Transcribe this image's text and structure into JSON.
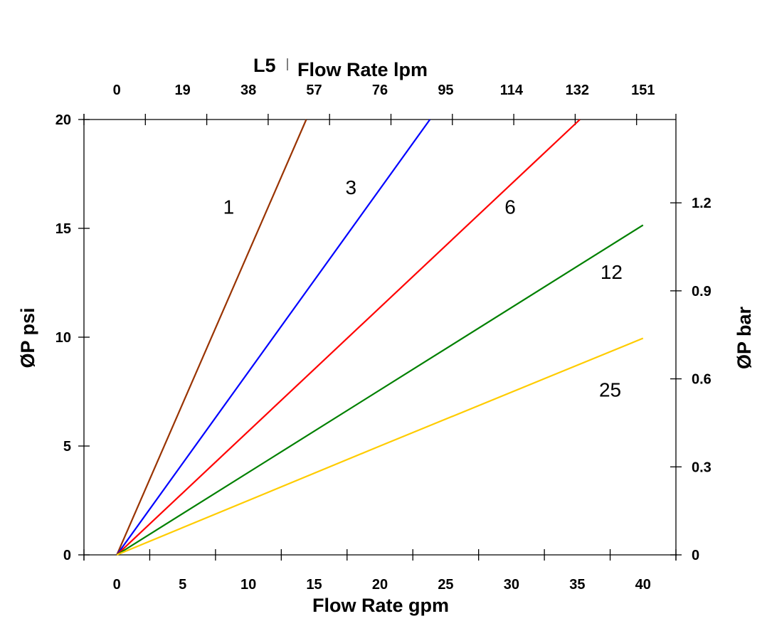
{
  "chart_data": {
    "type": "line",
    "title": "L5",
    "xlabel": "Flow Rate gpm",
    "x2label": "Flow Rate lpm",
    "ylabel": "ØP psi",
    "y2label": "ØP bar",
    "xlim": [
      -2.5,
      42.5
    ],
    "ylim": [
      0,
      20
    ],
    "y2lim": [
      0,
      1.484
    ],
    "xticks": [
      0,
      5,
      10,
      15,
      20,
      25,
      30,
      35,
      40
    ],
    "x2ticklabels": [
      "0",
      "19",
      "38",
      "57",
      "76",
      "95",
      "114",
      "132",
      "151"
    ],
    "yticks": [
      0,
      5,
      10,
      15,
      20
    ],
    "y2ticks": [
      "0",
      "0.3",
      "0.6",
      "0.9",
      "1.2"
    ],
    "grid": false,
    "series": [
      {
        "name": "1",
        "color": "#993300",
        "x": [
          0,
          14.4
        ],
        "y": [
          0,
          20
        ],
        "label_at": [
          8.5,
          16.0
        ]
      },
      {
        "name": "3",
        "color": "#0000ff",
        "x": [
          0,
          23.8
        ],
        "y": [
          0,
          20
        ],
        "label_at": [
          17.8,
          16.9
        ]
      },
      {
        "name": "6",
        "color": "#ff0000",
        "x": [
          0,
          35.2
        ],
        "y": [
          0,
          20
        ],
        "label_at": [
          29.9,
          16.0
        ]
      },
      {
        "name": "12",
        "color": "#008000",
        "x": [
          0,
          40
        ],
        "y": [
          0,
          15.15
        ],
        "label_at": [
          37.6,
          13.0
        ]
      },
      {
        "name": "25",
        "color": "#ffcc00",
        "x": [
          0,
          20,
          40
        ],
        "y": [
          0,
          5.0,
          9.95
        ],
        "label_at": [
          37.5,
          7.6
        ]
      }
    ]
  }
}
